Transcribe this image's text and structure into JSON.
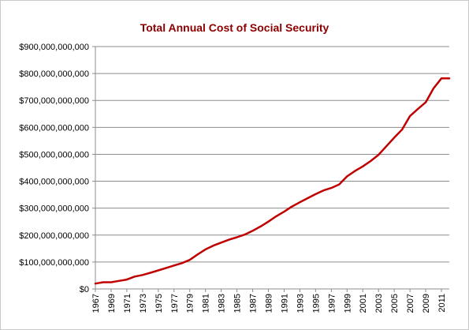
{
  "chart_data": {
    "type": "line",
    "title": "Total Annual Cost of Social Security",
    "xlabel": "",
    "ylabel": "",
    "ylim": [
      0,
      900000000000
    ],
    "grid": true,
    "legend": "none",
    "y_ticks": [
      "$0",
      "$100,000,000,000",
      "$200,000,000,000",
      "$300,000,000,000",
      "$400,000,000,000",
      "$500,000,000,000",
      "$600,000,000,000",
      "$700,000,000,000",
      "$800,000,000,000",
      "$900,000,000,000"
    ],
    "x_ticks": [
      "1967",
      "1969",
      "1971",
      "1973",
      "1975",
      "1977",
      "1979",
      "1981",
      "1983",
      "1985",
      "1987",
      "1989",
      "1991",
      "1993",
      "1995",
      "1997",
      "1999",
      "2001",
      "2003",
      "2005",
      "2007",
      "2009",
      "2011"
    ],
    "series": [
      {
        "color": "#c00000",
        "x": [
          1967,
          1968,
          1969,
          1970,
          1971,
          1972,
          1973,
          1974,
          1975,
          1976,
          1977,
          1978,
          1979,
          1980,
          1981,
          1982,
          1983,
          1984,
          1985,
          1986,
          1987,
          1988,
          1989,
          1990,
          1991,
          1992,
          1993,
          1994,
          1995,
          1996,
          1997,
          1998,
          1999,
          2000,
          2001,
          2002,
          2003,
          2004,
          2005,
          2006,
          2007,
          2008,
          2009,
          2010,
          2011,
          2012
        ],
        "values": [
          20000000000,
          25000000000,
          25000000000,
          30000000000,
          35000000000,
          46000000000,
          52000000000,
          60000000000,
          69000000000,
          78000000000,
          87000000000,
          96000000000,
          108000000000,
          128000000000,
          147000000000,
          161000000000,
          172000000000,
          183000000000,
          192000000000,
          202000000000,
          216000000000,
          232000000000,
          250000000000,
          270000000000,
          287000000000,
          306000000000,
          322000000000,
          337000000000,
          352000000000,
          366000000000,
          375000000000,
          388000000000,
          418000000000,
          438000000000,
          455000000000,
          475000000000,
          498000000000,
          530000000000,
          562000000000,
          592000000000,
          642000000000,
          668000000000,
          693000000000,
          745000000000,
          782000000000,
          782000000000
        ]
      }
    ]
  }
}
